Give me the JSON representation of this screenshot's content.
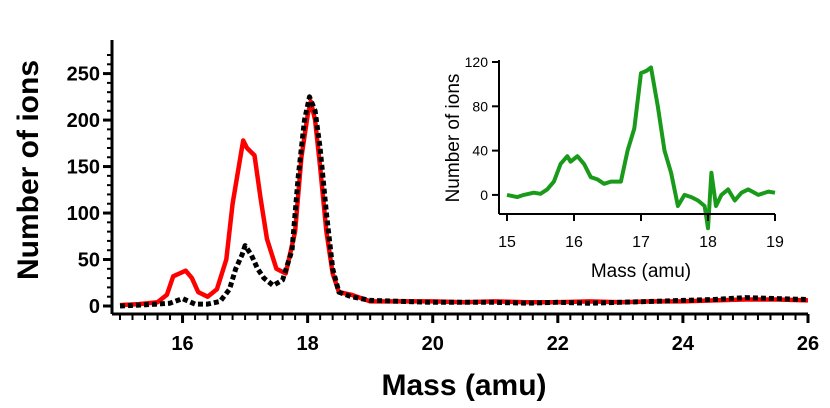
{
  "chart_data": [
    {
      "type": "line",
      "title": "",
      "xlabel": "Mass (amu)",
      "ylabel": "Number of ions",
      "xlim": [
        15,
        26
      ],
      "ylim": [
        0,
        270
      ],
      "xticks": [
        16,
        18,
        20,
        22,
        24,
        26
      ],
      "yticks": [
        0,
        50,
        100,
        150,
        200,
        250
      ],
      "grid": false,
      "legend": "none",
      "series": [
        {
          "color": "#ff0000",
          "style": "solid",
          "points": [
            [
              15.0,
              1
            ],
            [
              15.3,
              2
            ],
            [
              15.6,
              4
            ],
            [
              15.75,
              12
            ],
            [
              15.85,
              32
            ],
            [
              15.95,
              35
            ],
            [
              16.05,
              38
            ],
            [
              16.15,
              30
            ],
            [
              16.25,
              15
            ],
            [
              16.4,
              10
            ],
            [
              16.55,
              18
            ],
            [
              16.7,
              50
            ],
            [
              16.8,
              110
            ],
            [
              16.9,
              150
            ],
            [
              16.97,
              178
            ],
            [
              17.03,
              170
            ],
            [
              17.15,
              162
            ],
            [
              17.25,
              115
            ],
            [
              17.35,
              72
            ],
            [
              17.5,
              40
            ],
            [
              17.65,
              35
            ],
            [
              17.8,
              80
            ],
            [
              17.9,
              160
            ],
            [
              18.0,
              205
            ],
            [
              18.05,
              220
            ],
            [
              18.12,
              200
            ],
            [
              18.2,
              150
            ],
            [
              18.3,
              80
            ],
            [
              18.4,
              35
            ],
            [
              18.5,
              15
            ],
            [
              18.7,
              12
            ],
            [
              19.0,
              5
            ],
            [
              19.5,
              5
            ],
            [
              20.0,
              5
            ],
            [
              20.5,
              4
            ],
            [
              21.0,
              5
            ],
            [
              21.5,
              4
            ],
            [
              22.0,
              4
            ],
            [
              22.5,
              5
            ],
            [
              23.0,
              4
            ],
            [
              23.5,
              5
            ],
            [
              24.0,
              5
            ],
            [
              24.5,
              6
            ],
            [
              25.0,
              7
            ],
            [
              25.5,
              7
            ],
            [
              26.0,
              6
            ]
          ]
        },
        {
          "color": "#000000",
          "style": "dotted",
          "points": [
            [
              15.0,
              0
            ],
            [
              15.3,
              1
            ],
            [
              15.6,
              2
            ],
            [
              15.8,
              3
            ],
            [
              16.0,
              8
            ],
            [
              16.2,
              2
            ],
            [
              16.4,
              2
            ],
            [
              16.6,
              5
            ],
            [
              16.75,
              18
            ],
            [
              16.85,
              40
            ],
            [
              16.95,
              55
            ],
            [
              17.0,
              65
            ],
            [
              17.1,
              55
            ],
            [
              17.2,
              40
            ],
            [
              17.3,
              30
            ],
            [
              17.45,
              22
            ],
            [
              17.6,
              28
            ],
            [
              17.75,
              60
            ],
            [
              17.85,
              140
            ],
            [
              17.95,
              200
            ],
            [
              18.03,
              225
            ],
            [
              18.12,
              210
            ],
            [
              18.2,
              170
            ],
            [
              18.3,
              100
            ],
            [
              18.4,
              40
            ],
            [
              18.5,
              15
            ],
            [
              18.7,
              10
            ],
            [
              19.0,
              6
            ],
            [
              19.5,
              5
            ],
            [
              20.0,
              4
            ],
            [
              20.5,
              4
            ],
            [
              21.0,
              4
            ],
            [
              21.5,
              3
            ],
            [
              22.0,
              4
            ],
            [
              22.5,
              3
            ],
            [
              23.0,
              4
            ],
            [
              23.5,
              5
            ],
            [
              24.0,
              6
            ],
            [
              24.5,
              7
            ],
            [
              25.0,
              9
            ],
            [
              25.5,
              8
            ],
            [
              26.0,
              7
            ]
          ]
        }
      ]
    },
    {
      "type": "line",
      "title": "",
      "xlabel": "Mass (amu)",
      "ylabel": "Number of ions",
      "xlim": [
        15,
        19
      ],
      "ylim": [
        -10,
        120
      ],
      "xticks": [
        15,
        16,
        17,
        18,
        19
      ],
      "yticks": [
        0,
        40,
        80,
        120
      ],
      "grid": false,
      "legend": "none",
      "series": [
        {
          "color": "#1a9a1a",
          "style": "solid",
          "points": [
            [
              15.0,
              0
            ],
            [
              15.15,
              -2
            ],
            [
              15.25,
              0
            ],
            [
              15.4,
              2
            ],
            [
              15.5,
              1
            ],
            [
              15.6,
              5
            ],
            [
              15.7,
              12
            ],
            [
              15.8,
              28
            ],
            [
              15.9,
              35
            ],
            [
              15.95,
              30
            ],
            [
              16.05,
              35
            ],
            [
              16.15,
              28
            ],
            [
              16.25,
              16
            ],
            [
              16.35,
              14
            ],
            [
              16.45,
              10
            ],
            [
              16.55,
              12
            ],
            [
              16.7,
              12
            ],
            [
              16.8,
              40
            ],
            [
              16.9,
              60
            ],
            [
              17.0,
              110
            ],
            [
              17.08,
              112
            ],
            [
              17.15,
              115
            ],
            [
              17.25,
              80
            ],
            [
              17.35,
              40
            ],
            [
              17.45,
              20
            ],
            [
              17.55,
              -10
            ],
            [
              17.65,
              0
            ],
            [
              17.75,
              -2
            ],
            [
              17.85,
              -5
            ],
            [
              17.95,
              -10
            ],
            [
              18.0,
              -30
            ],
            [
              18.05,
              20
            ],
            [
              18.12,
              -10
            ],
            [
              18.2,
              0
            ],
            [
              18.3,
              5
            ],
            [
              18.4,
              -5
            ],
            [
              18.5,
              2
            ],
            [
              18.6,
              5
            ],
            [
              18.75,
              0
            ],
            [
              18.9,
              3
            ],
            [
              19.0,
              2
            ]
          ]
        }
      ]
    }
  ]
}
